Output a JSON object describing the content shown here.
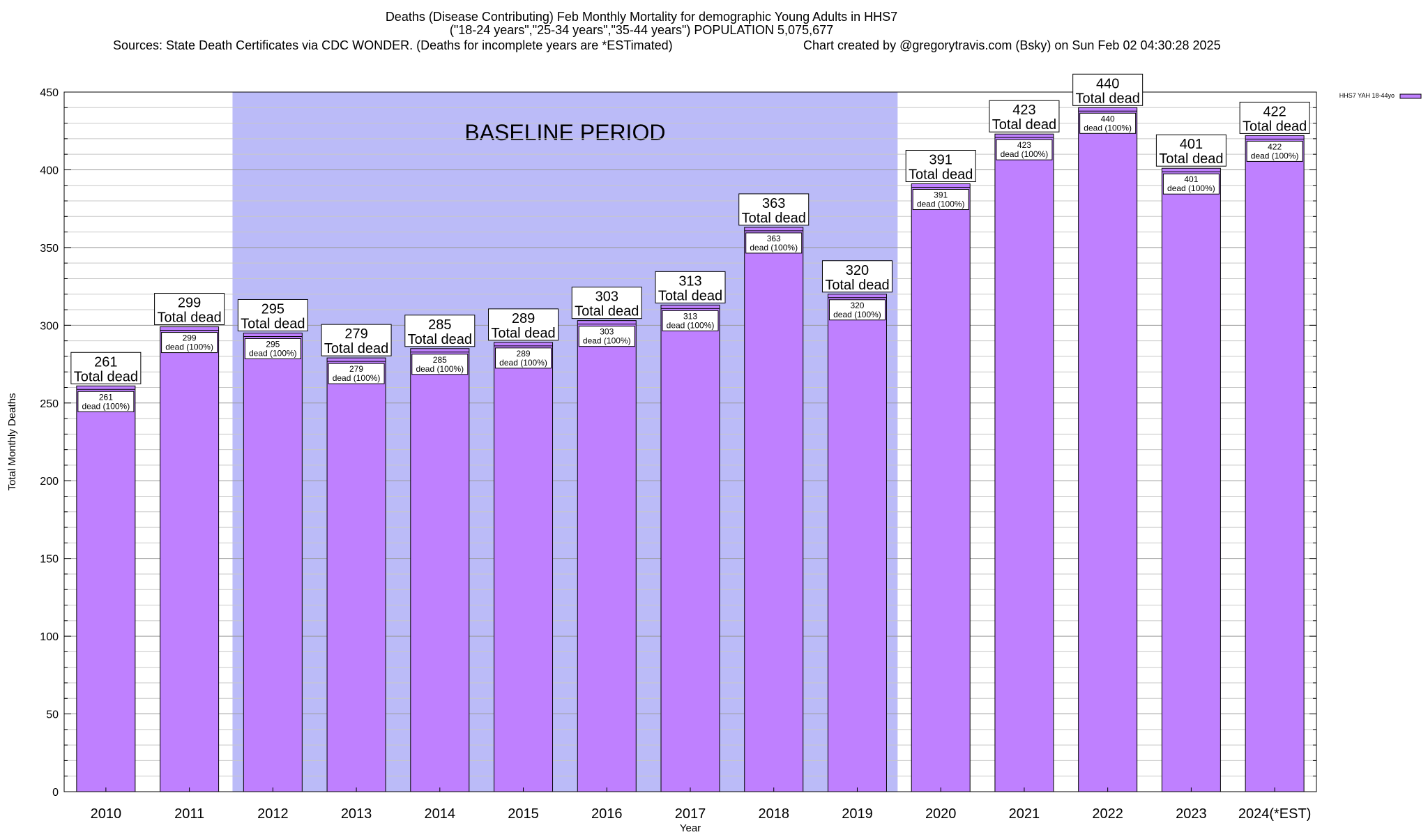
{
  "chart_data": {
    "type": "bar",
    "title_lines": [
      "Deaths (Disease Contributing) Feb Monthly Mortality for demographic Young Adults in HHS7",
      "(\"18-24 years\",\"25-34 years\",\"35-44 years\") POPULATION 5,075,677"
    ],
    "source_text": "Sources: State Death Certificates via CDC WONDER. (Deaths for incomplete years are *ESTimated)",
    "credit_text": "Chart created by @gregorytravis.com (Bsky) on Sun Feb 02 04:30:28 2025",
    "xlabel": "Year",
    "ylabel": "Total Monthly Deaths",
    "ylim": [
      0,
      450
    ],
    "y_ticks": [
      0,
      50,
      100,
      150,
      200,
      250,
      300,
      350,
      400,
      450
    ],
    "y_minor_step": 10,
    "grid": true,
    "legend": {
      "position": "top-right",
      "label": "HHS7 YAH 18-44yo",
      "color": "#bf80ff"
    },
    "baseline": {
      "label": "BASELINE PERIOD",
      "from_category": "2012",
      "to_category": "2019",
      "color": "#bbbbf8"
    },
    "bar_color": "#bf80ff",
    "label_total_suffix": "Total dead",
    "label_inner_suffix": "dead (100%)",
    "categories": [
      "2010",
      "2011",
      "2012",
      "2013",
      "2014",
      "2015",
      "2016",
      "2017",
      "2018",
      "2019",
      "2020",
      "2021",
      "2022",
      "2023",
      "2024(*EST)"
    ],
    "values": [
      261,
      299,
      295,
      279,
      285,
      289,
      303,
      313,
      363,
      320,
      391,
      423,
      440,
      401,
      422
    ]
  }
}
